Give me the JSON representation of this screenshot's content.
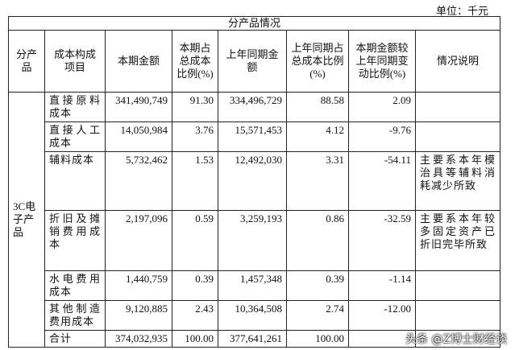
{
  "unit": "单位：千元",
  "table": {
    "caption": "分产品情况",
    "header": [
      "分产品",
      "成本构成项目",
      "本期金额",
      "本期占总成本比例(%)",
      "上年同期金额",
      "上年同期占总成本比例(%)",
      "本期金额较上年同期变动比例(%)",
      "情况说明"
    ],
    "group": "3C电子产品",
    "rows": [
      [
        "直接原料成本",
        "341,490,749",
        "91.30",
        "334,496,729",
        "88.58",
        "2.09",
        ""
      ],
      [
        "直接人工成本",
        "14,050,984",
        "3.76",
        "15,571,453",
        "4.12",
        "-9.76",
        ""
      ],
      [
        "辅料成本",
        "5,732,462",
        "1.53",
        "12,492,030",
        "3.31",
        "-54.11",
        "主要系本年模治具等辅料消耗减少所致"
      ],
      [
        "折旧及摊销费用成本",
        "2,197,096",
        "0.59",
        "3,259,193",
        "0.86",
        "-32.59",
        "主要系本年较多固定资产已折旧完毕所致"
      ],
      [
        "水电费用成本",
        "1,440,759",
        "0.39",
        "1,457,348",
        "0.39",
        "-1.14",
        ""
      ],
      [
        "其他制造费用成本",
        "9,120,885",
        "2.43",
        "10,364,508",
        "2.74",
        "-12.00",
        ""
      ],
      [
        "合计",
        "374,032,935",
        "100.00",
        "377,641,261",
        "100.00",
        "",
        ""
      ]
    ]
  },
  "watermark": "头条 @Z博士财经谈"
}
